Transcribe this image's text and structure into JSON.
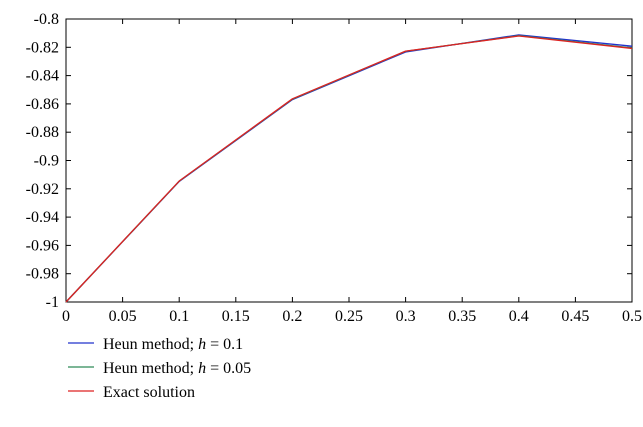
{
  "chart_data": {
    "type": "line",
    "title": "",
    "xlabel": "",
    "ylabel": "",
    "xlim": [
      0,
      0.5
    ],
    "ylim": [
      -1,
      -0.8
    ],
    "grid": false,
    "legend_position": "bottom-left",
    "x_ticks": [
      "0",
      "0.05",
      "0.1",
      "0.15",
      "0.2",
      "0.25",
      "0.3",
      "0.35",
      "0.4",
      "0.45",
      "0.5"
    ],
    "y_ticks": [
      "-0.8",
      "-0.82",
      "-0.84",
      "-0.86",
      "-0.88",
      "-0.9",
      "-0.92",
      "-0.94",
      "-0.96",
      "-0.98",
      "-1"
    ],
    "series": [
      {
        "name": "Heun method; h = 0.1",
        "label_prefix": "Heun method; ",
        "label_var": "h",
        "label_suffix": " = 0.1",
        "color": "#2233cc",
        "x": [
          0,
          0.1,
          0.2,
          0.3,
          0.4,
          0.5
        ],
        "y": [
          -1,
          -0.9148,
          -0.857,
          -0.8233,
          -0.8112,
          -0.8192
        ]
      },
      {
        "name": "Heun method; h = 0.05",
        "label_prefix": "Heun method; ",
        "label_var": "h",
        "label_suffix": " = 0.05",
        "color": "#2e8b57",
        "x": [
          0,
          0.1,
          0.2,
          0.3,
          0.4,
          0.5
        ],
        "y": [
          -1,
          -0.9146,
          -0.8566,
          -0.8228,
          -0.8118,
          -0.8204
        ]
      },
      {
        "name": "Exact solution",
        "label_prefix": "Exact solution",
        "label_var": "",
        "label_suffix": "",
        "color": "#dd2222",
        "x": [
          0,
          0.1,
          0.2,
          0.3,
          0.4,
          0.5
        ],
        "y": [
          -1,
          -0.9145,
          -0.8564,
          -0.8227,
          -0.812,
          -0.8208
        ]
      }
    ]
  }
}
